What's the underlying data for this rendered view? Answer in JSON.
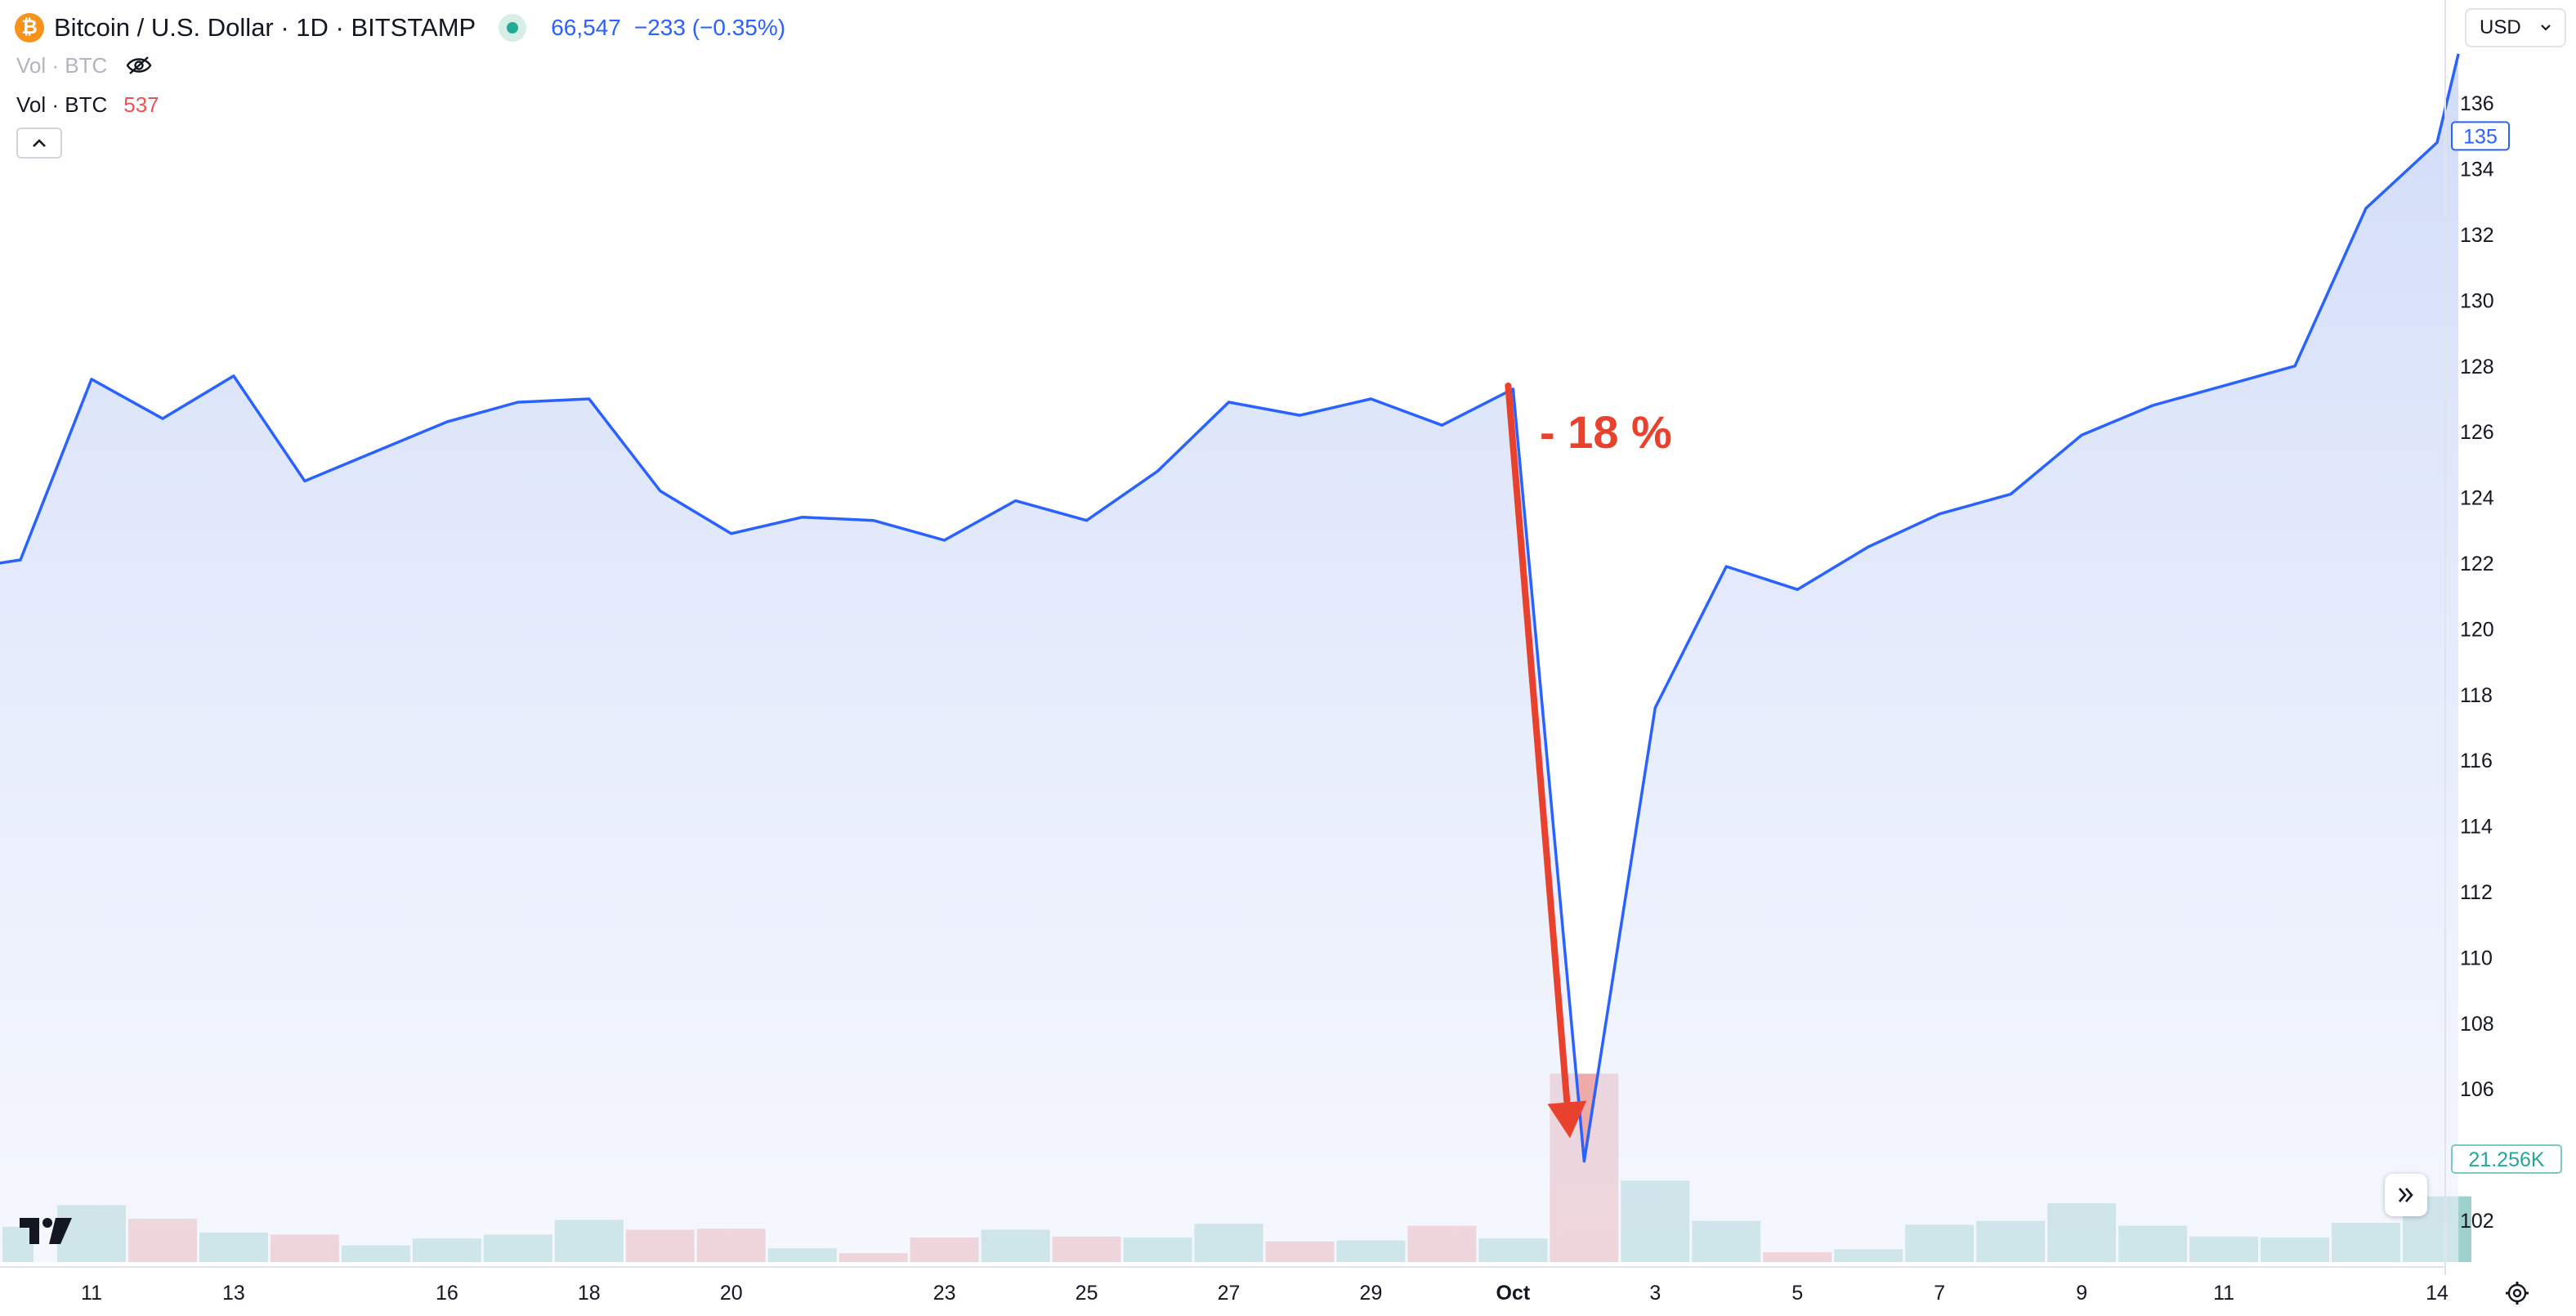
{
  "header": {
    "symbol_title": "Bitcoin / U.S. Dollar · 1D · BITSTAMP",
    "logo_glyph": "₿",
    "last_price": "66,547",
    "change": "−233 (−0.35%)",
    "price_color": "#2962ff"
  },
  "volume_legend": {
    "hidden_label": "Vol · BTC",
    "label": "Vol · BTC",
    "value": "537",
    "value_color": "#ef5350"
  },
  "controls": {
    "currency": "USD",
    "icons": [
      "eye-off-icon",
      "chevron-up-icon",
      "chevron-down-icon",
      "double-chevron-right-icon",
      "gear-icon",
      "tradingview-logo"
    ]
  },
  "chart_data": {
    "type": "area",
    "xlim": [
      -0.3,
      34
    ],
    "ylim": [
      100.9,
      137.9
    ],
    "x_ticks": [
      {
        "x": 1,
        "label": "11",
        "bold": false
      },
      {
        "x": 3,
        "label": "13",
        "bold": false
      },
      {
        "x": 6,
        "label": "16",
        "bold": false
      },
      {
        "x": 8,
        "label": "18",
        "bold": false
      },
      {
        "x": 10,
        "label": "20",
        "bold": false
      },
      {
        "x": 13,
        "label": "23",
        "bold": false
      },
      {
        "x": 15,
        "label": "25",
        "bold": false
      },
      {
        "x": 17,
        "label": "27",
        "bold": false
      },
      {
        "x": 19,
        "label": "29",
        "bold": false
      },
      {
        "x": 21,
        "label": "Oct",
        "bold": true
      },
      {
        "x": 23,
        "label": "3",
        "bold": false
      },
      {
        "x": 25,
        "label": "5",
        "bold": false
      },
      {
        "x": 27,
        "label": "7",
        "bold": false
      },
      {
        "x": 29,
        "label": "9",
        "bold": false
      },
      {
        "x": 31,
        "label": "11",
        "bold": false
      },
      {
        "x": 34,
        "label": "14",
        "bold": false
      }
    ],
    "y_ticks": [
      102,
      104,
      106,
      108,
      110,
      112,
      114,
      116,
      118,
      120,
      122,
      124,
      126,
      128,
      130,
      132,
      134,
      136
    ],
    "series": [
      {
        "values": [
          [
            -0.3,
            122.0
          ],
          [
            0,
            122.1
          ],
          [
            1,
            127.6
          ],
          [
            2,
            126.4
          ],
          [
            3,
            127.7
          ],
          [
            4,
            124.5
          ],
          [
            5,
            125.4
          ],
          [
            6,
            126.3
          ],
          [
            7,
            126.9
          ],
          [
            8,
            127.0
          ],
          [
            9,
            124.2
          ],
          [
            10,
            122.9
          ],
          [
            11,
            123.4
          ],
          [
            12,
            123.3
          ],
          [
            13,
            122.7
          ],
          [
            14,
            123.9
          ],
          [
            15,
            123.3
          ],
          [
            16,
            124.8
          ],
          [
            17,
            126.9
          ],
          [
            18,
            126.5
          ],
          [
            19,
            127.0
          ],
          [
            20,
            126.2
          ],
          [
            21,
            127.3
          ],
          [
            22,
            103.8
          ],
          [
            23,
            117.6
          ],
          [
            24,
            121.9
          ],
          [
            25,
            121.2
          ],
          [
            26,
            122.5
          ],
          [
            27,
            123.5
          ],
          [
            28,
            124.1
          ],
          [
            29,
            125.9
          ],
          [
            30,
            126.8
          ],
          [
            31,
            127.4
          ],
          [
            32,
            128.0
          ],
          [
            33,
            132.8
          ],
          [
            34,
            134.8
          ],
          [
            34.3,
            137.5
          ]
        ],
        "color": "#2962ff"
      }
    ],
    "volume": [
      {
        "x": -0.3,
        "value": 0.36,
        "up": true
      },
      {
        "x": 1,
        "value": 0.58,
        "up": true
      },
      {
        "x": 2,
        "value": 0.44,
        "up": false
      },
      {
        "x": 3,
        "value": 0.3,
        "up": true
      },
      {
        "x": 4,
        "value": 0.28,
        "up": false
      },
      {
        "x": 5,
        "value": 0.17,
        "up": true
      },
      {
        "x": 6,
        "value": 0.24,
        "up": true
      },
      {
        "x": 7,
        "value": 0.28,
        "up": true
      },
      {
        "x": 8,
        "value": 0.43,
        "up": true
      },
      {
        "x": 9,
        "value": 0.33,
        "up": false
      },
      {
        "x": 10,
        "value": 0.34,
        "up": false
      },
      {
        "x": 11,
        "value": 0.14,
        "up": true
      },
      {
        "x": 12,
        "value": 0.09,
        "up": false
      },
      {
        "x": 13,
        "value": 0.25,
        "up": false
      },
      {
        "x": 14,
        "value": 0.33,
        "up": true
      },
      {
        "x": 15,
        "value": 0.26,
        "up": false
      },
      {
        "x": 16,
        "value": 0.25,
        "up": true
      },
      {
        "x": 17,
        "value": 0.39,
        "up": true
      },
      {
        "x": 18,
        "value": 0.21,
        "up": false
      },
      {
        "x": 19,
        "value": 0.22,
        "up": true
      },
      {
        "x": 20,
        "value": 0.37,
        "up": false
      },
      {
        "x": 21,
        "value": 0.24,
        "up": true
      },
      {
        "x": 22,
        "value": 1.92,
        "up": false
      },
      {
        "x": 23,
        "value": 0.83,
        "up": true
      },
      {
        "x": 24,
        "value": 0.42,
        "up": true
      },
      {
        "x": 25,
        "value": 0.1,
        "up": false
      },
      {
        "x": 26,
        "value": 0.13,
        "up": true
      },
      {
        "x": 27,
        "value": 0.38,
        "up": true
      },
      {
        "x": 28,
        "value": 0.42,
        "up": true
      },
      {
        "x": 29,
        "value": 0.6,
        "up": true
      },
      {
        "x": 30,
        "value": 0.37,
        "up": true
      },
      {
        "x": 31,
        "value": 0.26,
        "up": true
      },
      {
        "x": 32,
        "value": 0.25,
        "up": true
      },
      {
        "x": 33,
        "value": 0.4,
        "up": true
      },
      {
        "x": 34,
        "value": 0.67,
        "up": true
      }
    ],
    "volume_max": 2.0,
    "colors": {
      "up": "#9fd1cc",
      "down": "#eeaaa8",
      "line": "#2962ff",
      "area": "#d5defa",
      "arrow": "#e8412e"
    },
    "annotation": {
      "text": "- 18 %",
      "arrow_from": [
        21,
        127.3
      ],
      "arrow_to": [
        21.8,
        104.5
      ]
    },
    "price_label": {
      "value": "135",
      "y": 135
    },
    "volume_label": {
      "value": "21.256K"
    }
  }
}
